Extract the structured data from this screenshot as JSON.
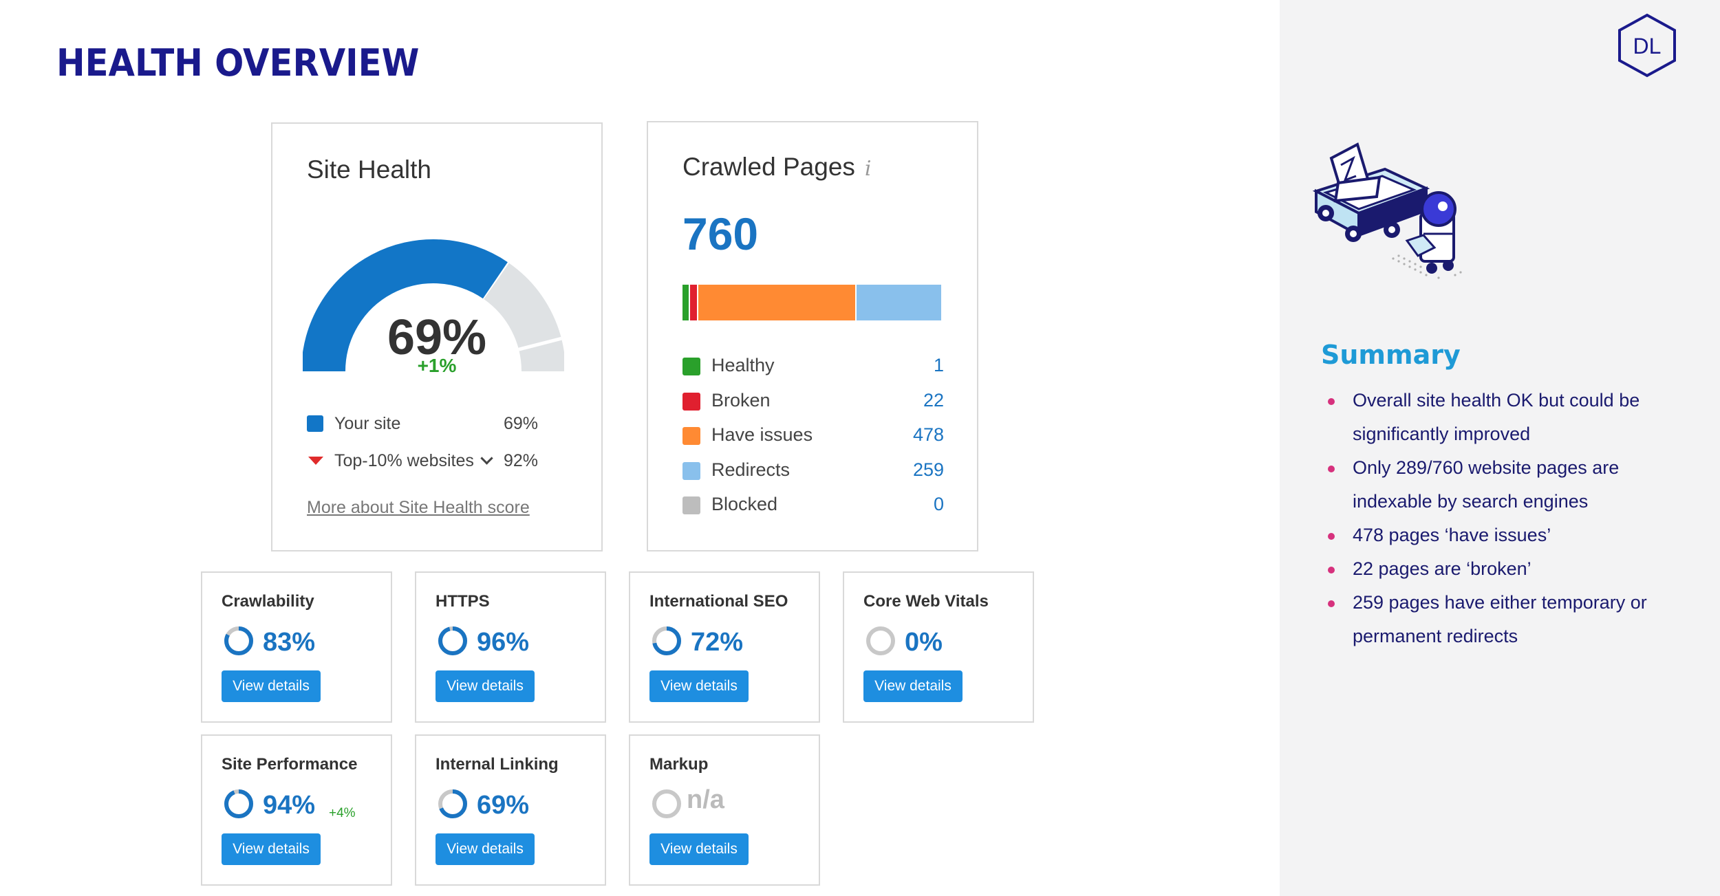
{
  "slide": {
    "title": "HEALTH OVERVIEW"
  },
  "logo": {
    "text": "DL"
  },
  "site_health": {
    "title": "Site Health",
    "score": "69%",
    "score_value": 69,
    "top10_value": 92,
    "delta": "+1%",
    "legend": [
      {
        "label": "Your site",
        "value": "69%"
      },
      {
        "label": "Top-10% websites",
        "value": "92%"
      }
    ],
    "more_link": "More about Site Health score",
    "colors": {
      "primary": "#1276c7",
      "remainder": "#dfe2e4",
      "marker": "#e02b2b"
    }
  },
  "crawled": {
    "title": "Crawled Pages",
    "info_icon": "i",
    "total": "760",
    "rows": [
      {
        "label": "Healthy",
        "value": "1",
        "count": 1,
        "color": "#2aa02b"
      },
      {
        "label": "Broken",
        "value": "22",
        "count": 22,
        "color": "#e0202f"
      },
      {
        "label": "Have issues",
        "value": "478",
        "count": 478,
        "color": "#ff8a33"
      },
      {
        "label": "Redirects",
        "value": "259",
        "count": 259,
        "color": "#89c0ec"
      },
      {
        "label": "Blocked",
        "value": "0",
        "count": 0,
        "color": "#bdbdbd"
      }
    ]
  },
  "metrics": [
    {
      "title": "Crawlability",
      "value": "83%",
      "pct": 83,
      "delta": "",
      "button": "View details"
    },
    {
      "title": "HTTPS",
      "value": "96%",
      "pct": 96,
      "delta": "",
      "button": "View details"
    },
    {
      "title": "International SEO",
      "value": "72%",
      "pct": 72,
      "delta": "",
      "button": "View details"
    },
    {
      "title": "Core Web Vitals",
      "value": "0%",
      "pct": 0,
      "delta": "",
      "button": "View details"
    },
    {
      "title": "Site Performance",
      "value": "94%",
      "pct": 94,
      "delta": "+4%",
      "button": "View details"
    },
    {
      "title": "Internal Linking",
      "value": "69%",
      "pct": 69,
      "delta": "",
      "button": "View details"
    },
    {
      "title": "Markup",
      "value": "n/a",
      "pct": null,
      "delta": "",
      "button": "View details"
    }
  ],
  "summary": {
    "title": "Summary",
    "items": [
      "Overall site health OK but could be significantly improved",
      "Only 289/760 website pages are indexable by search engines",
      "478 pages ‘have issues’",
      "22 pages are ‘broken’",
      "259 pages have either temporary or permanent redirects"
    ]
  }
}
